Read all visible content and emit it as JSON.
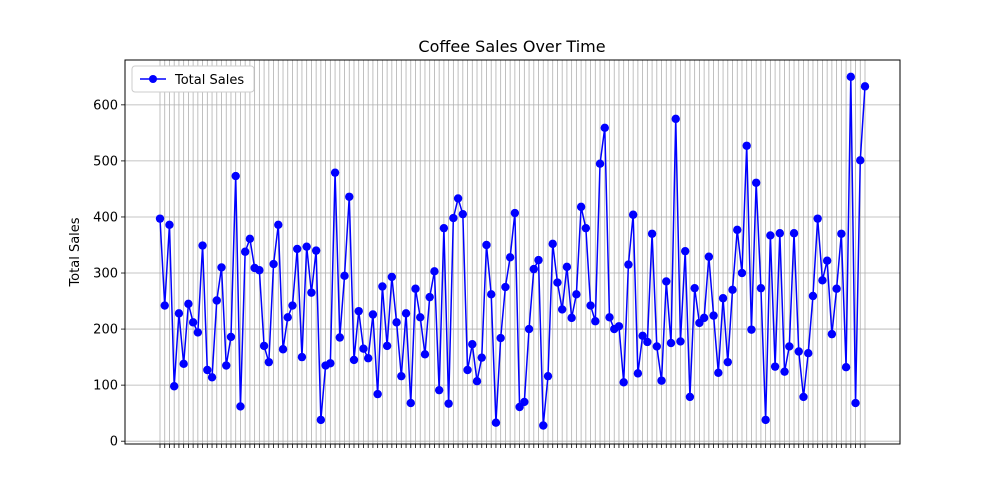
{
  "chart_data": {
    "type": "line",
    "title": "Coffee Sales Over Time",
    "xlabel": "",
    "ylabel": "Total Sales",
    "ylim": [
      -5,
      680
    ],
    "yticks": [
      0,
      100,
      200,
      300,
      400,
      500,
      600
    ],
    "grid": true,
    "legend_position": "top-left",
    "color": "#0000ff",
    "series": [
      {
        "name": "Total Sales",
        "values": [
          397,
          242,
          386,
          98,
          228,
          138,
          245,
          212,
          194,
          349,
          127,
          114,
          251,
          310,
          135,
          186,
          473,
          62,
          338,
          361,
          309,
          305,
          170,
          141,
          316,
          386,
          164,
          221,
          242,
          343,
          150,
          347,
          265,
          340,
          38,
          135,
          139,
          479,
          185,
          295,
          436,
          145,
          232,
          165,
          148,
          226,
          84,
          276,
          170,
          293,
          212,
          116,
          228,
          68,
          272,
          221,
          155,
          257,
          303,
          91,
          380,
          67,
          398,
          433,
          405,
          127,
          173,
          107,
          149,
          350,
          262,
          33,
          184,
          275,
          328,
          407,
          61,
          70,
          200,
          307,
          323,
          28,
          116,
          352,
          283,
          235,
          311,
          220,
          262,
          418,
          380,
          242,
          214,
          495,
          559,
          221,
          200,
          205,
          105,
          315,
          404,
          121,
          188,
          177,
          370,
          169,
          108,
          285,
          175,
          575,
          178,
          339,
          79,
          273,
          211,
          220,
          329,
          224,
          122,
          255,
          141,
          270,
          377,
          300,
          527,
          199,
          461,
          273,
          38,
          367,
          133,
          371,
          124,
          169,
          371,
          160,
          79,
          157,
          259,
          397,
          287,
          322,
          191,
          272,
          370,
          132,
          650,
          68,
          501,
          633
        ]
      }
    ]
  }
}
